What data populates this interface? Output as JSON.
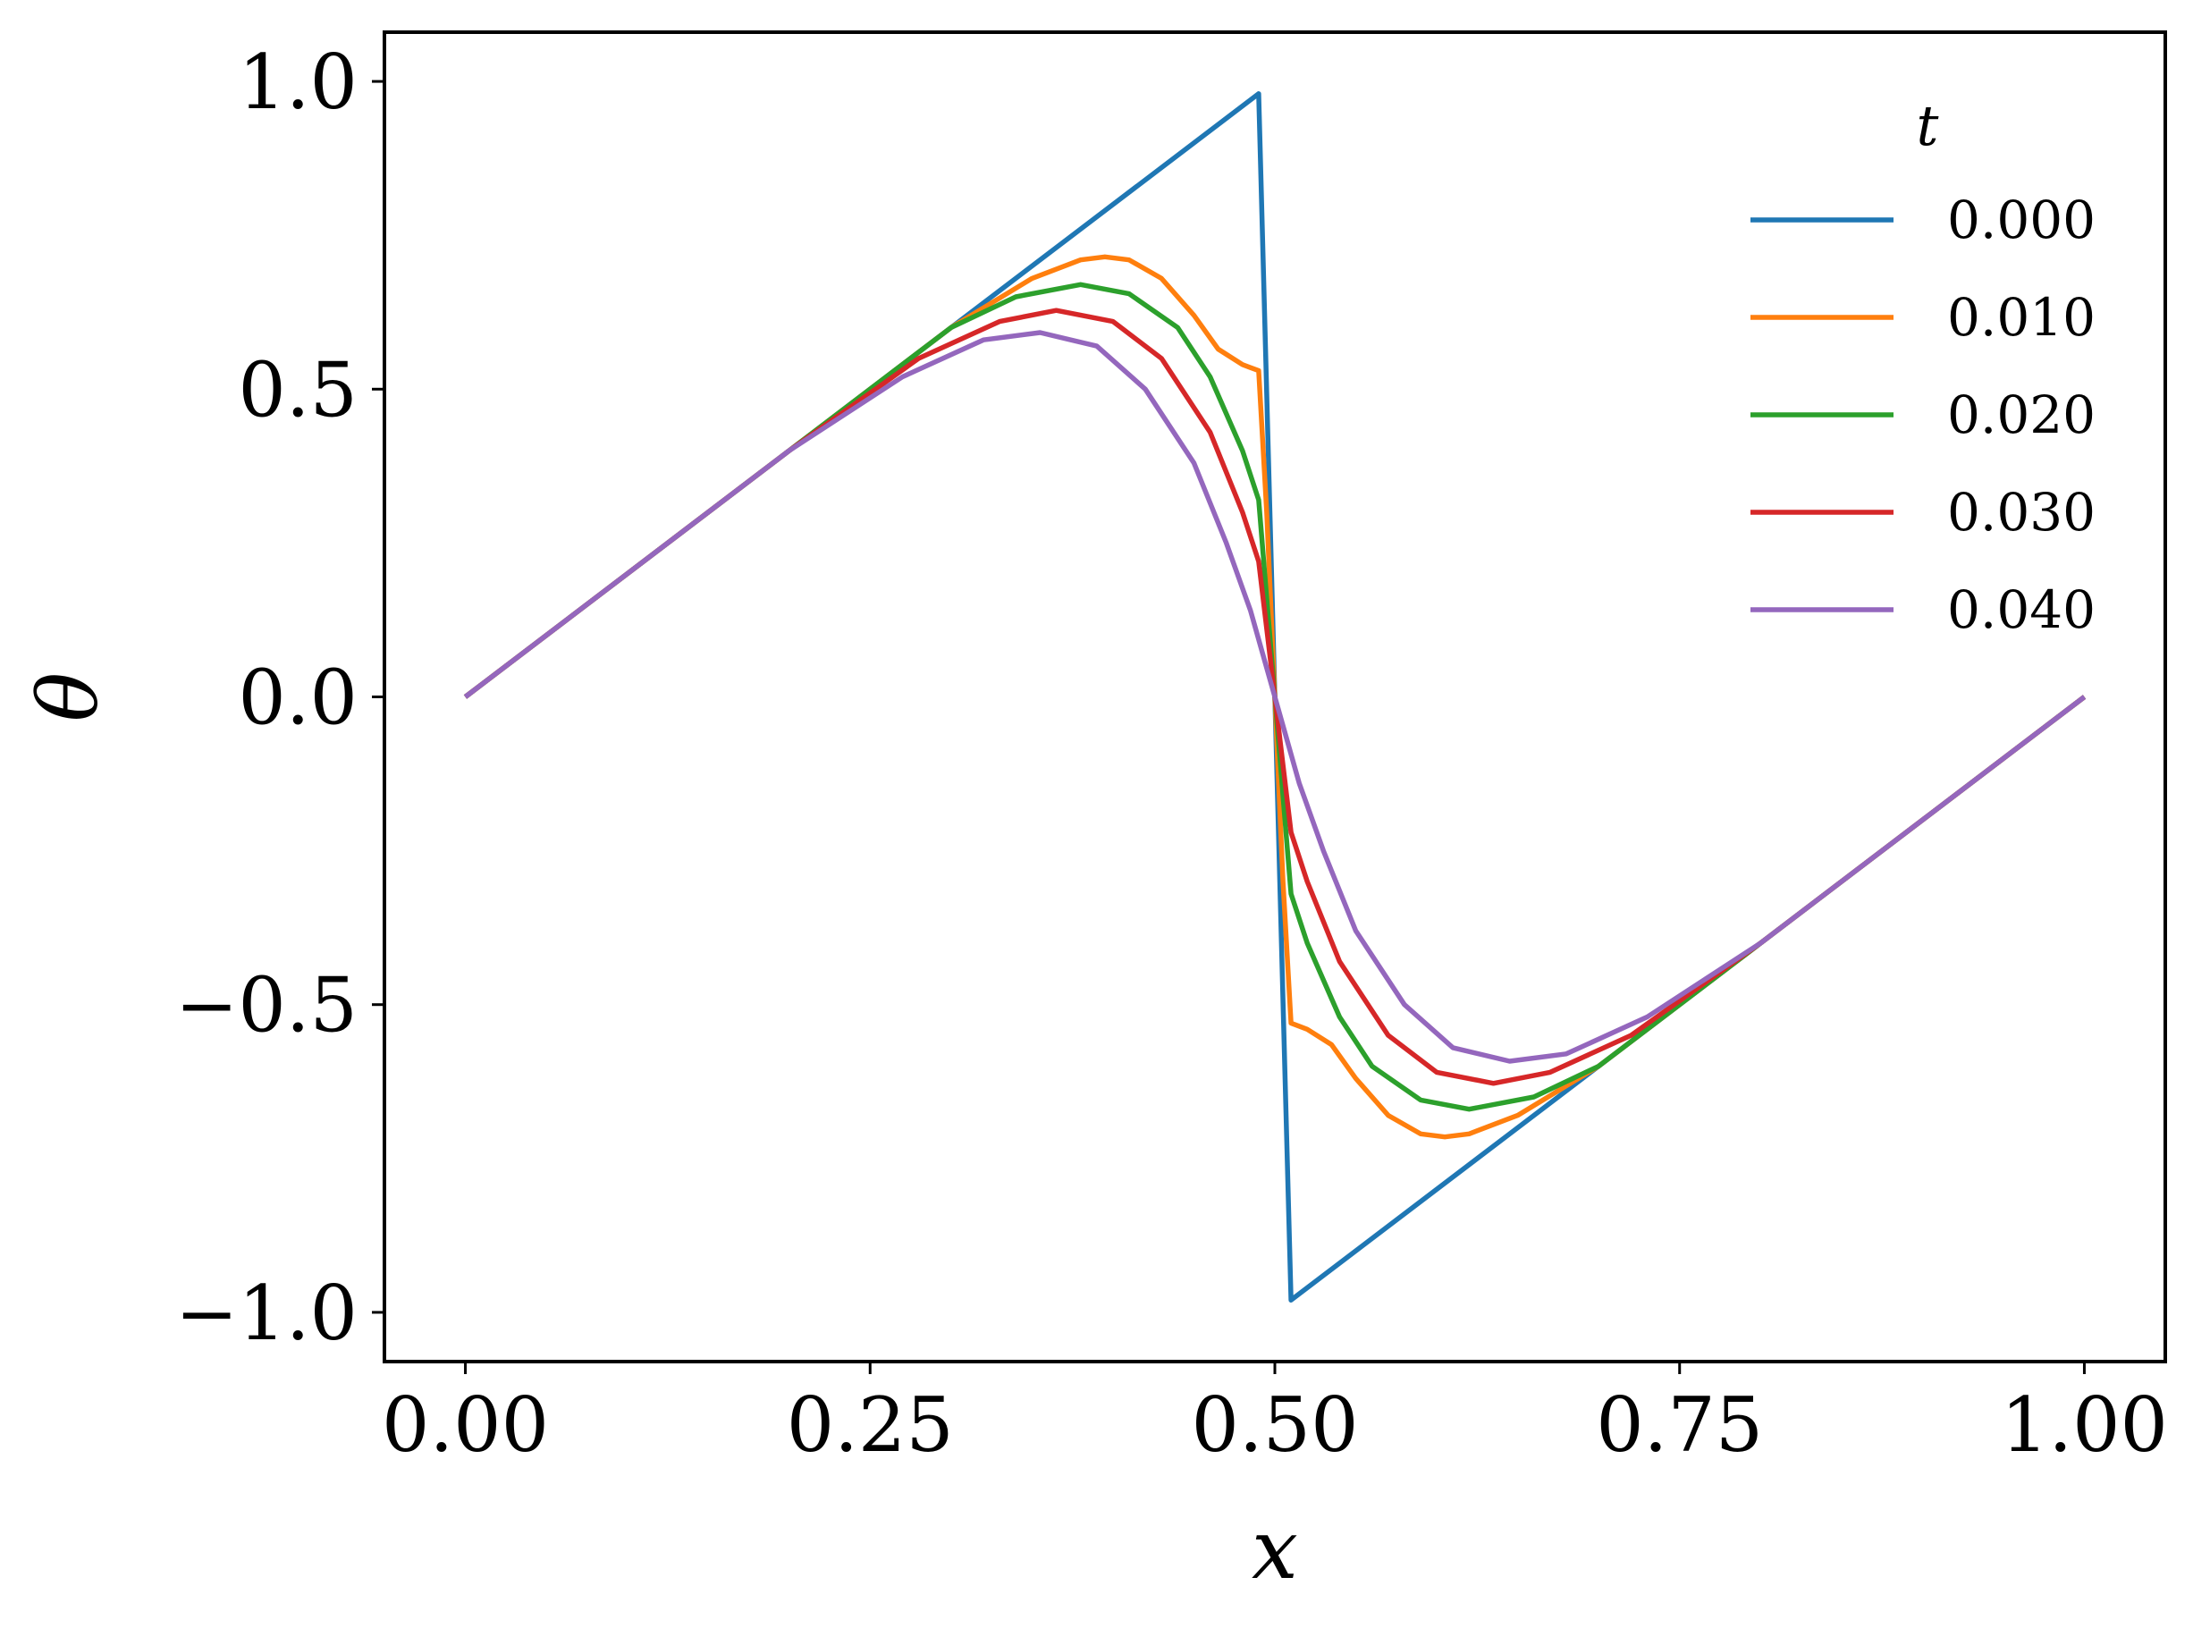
{
  "chart_data": {
    "type": "line",
    "xlabel": "x",
    "ylabel": "θ",
    "xlim": [
      -0.05,
      1.05
    ],
    "ylim": [
      -1.08,
      1.08
    ],
    "xticks": [
      0.0,
      0.25,
      0.5,
      0.75,
      1.0
    ],
    "xtick_labels": [
      "0.00",
      "0.25",
      "0.50",
      "0.75",
      "1.00"
    ],
    "yticks": [
      -1.0,
      -0.5,
      0.0,
      0.5,
      1.0
    ],
    "ytick_labels": [
      "−1.0",
      "−0.5",
      "0.0",
      "0.5",
      "1.0"
    ],
    "grid": false,
    "legend": {
      "title": "t",
      "placement": "top-right"
    },
    "series": [
      {
        "name": "0.000",
        "color": "#1f77b4",
        "points": [
          [
            0.0,
            0.0
          ],
          [
            0.49,
            0.98
          ],
          [
            0.51,
            -0.98
          ],
          [
            1.0,
            0.0
          ]
        ]
      },
      {
        "name": "0.010",
        "color": "#ff7f0e",
        "points": [
          [
            0.0,
            0.0
          ],
          [
            0.1,
            0.2
          ],
          [
            0.2,
            0.4
          ],
          [
            0.3,
            0.6
          ],
          [
            0.35,
            0.68
          ],
          [
            0.38,
            0.71
          ],
          [
            0.395,
            0.715
          ],
          [
            0.41,
            0.71
          ],
          [
            0.43,
            0.68
          ],
          [
            0.45,
            0.62
          ],
          [
            0.465,
            0.565
          ],
          [
            0.48,
            0.54
          ],
          [
            0.49,
            0.53
          ],
          [
            0.495,
            0.3
          ],
          [
            0.5,
            0.0
          ],
          [
            0.505,
            -0.3
          ],
          [
            0.51,
            -0.53
          ],
          [
            0.52,
            -0.54
          ],
          [
            0.535,
            -0.565
          ],
          [
            0.55,
            -0.62
          ],
          [
            0.57,
            -0.68
          ],
          [
            0.59,
            -0.71
          ],
          [
            0.605,
            -0.715
          ],
          [
            0.62,
            -0.71
          ],
          [
            0.65,
            -0.68
          ],
          [
            0.7,
            -0.6
          ],
          [
            0.8,
            -0.4
          ],
          [
            0.9,
            -0.2
          ],
          [
            1.0,
            0.0
          ]
        ]
      },
      {
        "name": "0.020",
        "color": "#2ca02c",
        "points": [
          [
            0.0,
            0.0
          ],
          [
            0.1,
            0.2
          ],
          [
            0.2,
            0.4
          ],
          [
            0.3,
            0.6
          ],
          [
            0.34,
            0.65
          ],
          [
            0.38,
            0.67
          ],
          [
            0.41,
            0.655
          ],
          [
            0.44,
            0.6
          ],
          [
            0.46,
            0.52
          ],
          [
            0.48,
            0.4
          ],
          [
            0.49,
            0.32
          ],
          [
            0.5,
            0.0
          ],
          [
            0.51,
            -0.32
          ],
          [
            0.52,
            -0.4
          ],
          [
            0.54,
            -0.52
          ],
          [
            0.56,
            -0.6
          ],
          [
            0.59,
            -0.655
          ],
          [
            0.62,
            -0.67
          ],
          [
            0.66,
            -0.65
          ],
          [
            0.7,
            -0.6
          ],
          [
            0.8,
            -0.4
          ],
          [
            0.9,
            -0.2
          ],
          [
            1.0,
            0.0
          ]
        ]
      },
      {
        "name": "0.030",
        "color": "#d62728",
        "points": [
          [
            0.0,
            0.0
          ],
          [
            0.1,
            0.2
          ],
          [
            0.2,
            0.4
          ],
          [
            0.28,
            0.55
          ],
          [
            0.33,
            0.61
          ],
          [
            0.365,
            0.628
          ],
          [
            0.4,
            0.61
          ],
          [
            0.43,
            0.55
          ],
          [
            0.46,
            0.43
          ],
          [
            0.48,
            0.3
          ],
          [
            0.49,
            0.22
          ],
          [
            0.5,
            0.0
          ],
          [
            0.51,
            -0.22
          ],
          [
            0.52,
            -0.3
          ],
          [
            0.54,
            -0.43
          ],
          [
            0.57,
            -0.55
          ],
          [
            0.6,
            -0.61
          ],
          [
            0.635,
            -0.628
          ],
          [
            0.67,
            -0.61
          ],
          [
            0.72,
            -0.55
          ],
          [
            0.8,
            -0.4
          ],
          [
            0.9,
            -0.2
          ],
          [
            1.0,
            0.0
          ]
        ]
      },
      {
        "name": "0.040",
        "color": "#9467bd",
        "points": [
          [
            0.0,
            0.0
          ],
          [
            0.1,
            0.2
          ],
          [
            0.2,
            0.4
          ],
          [
            0.27,
            0.52
          ],
          [
            0.32,
            0.58
          ],
          [
            0.355,
            0.592
          ],
          [
            0.39,
            0.57
          ],
          [
            0.42,
            0.5
          ],
          [
            0.45,
            0.38
          ],
          [
            0.47,
            0.25
          ],
          [
            0.485,
            0.14
          ],
          [
            0.5,
            0.0
          ],
          [
            0.515,
            -0.14
          ],
          [
            0.53,
            -0.25
          ],
          [
            0.55,
            -0.38
          ],
          [
            0.58,
            -0.5
          ],
          [
            0.61,
            -0.57
          ],
          [
            0.645,
            -0.592
          ],
          [
            0.68,
            -0.58
          ],
          [
            0.73,
            -0.52
          ],
          [
            0.8,
            -0.4
          ],
          [
            0.9,
            -0.2
          ],
          [
            1.0,
            0.0
          ]
        ]
      }
    ]
  }
}
